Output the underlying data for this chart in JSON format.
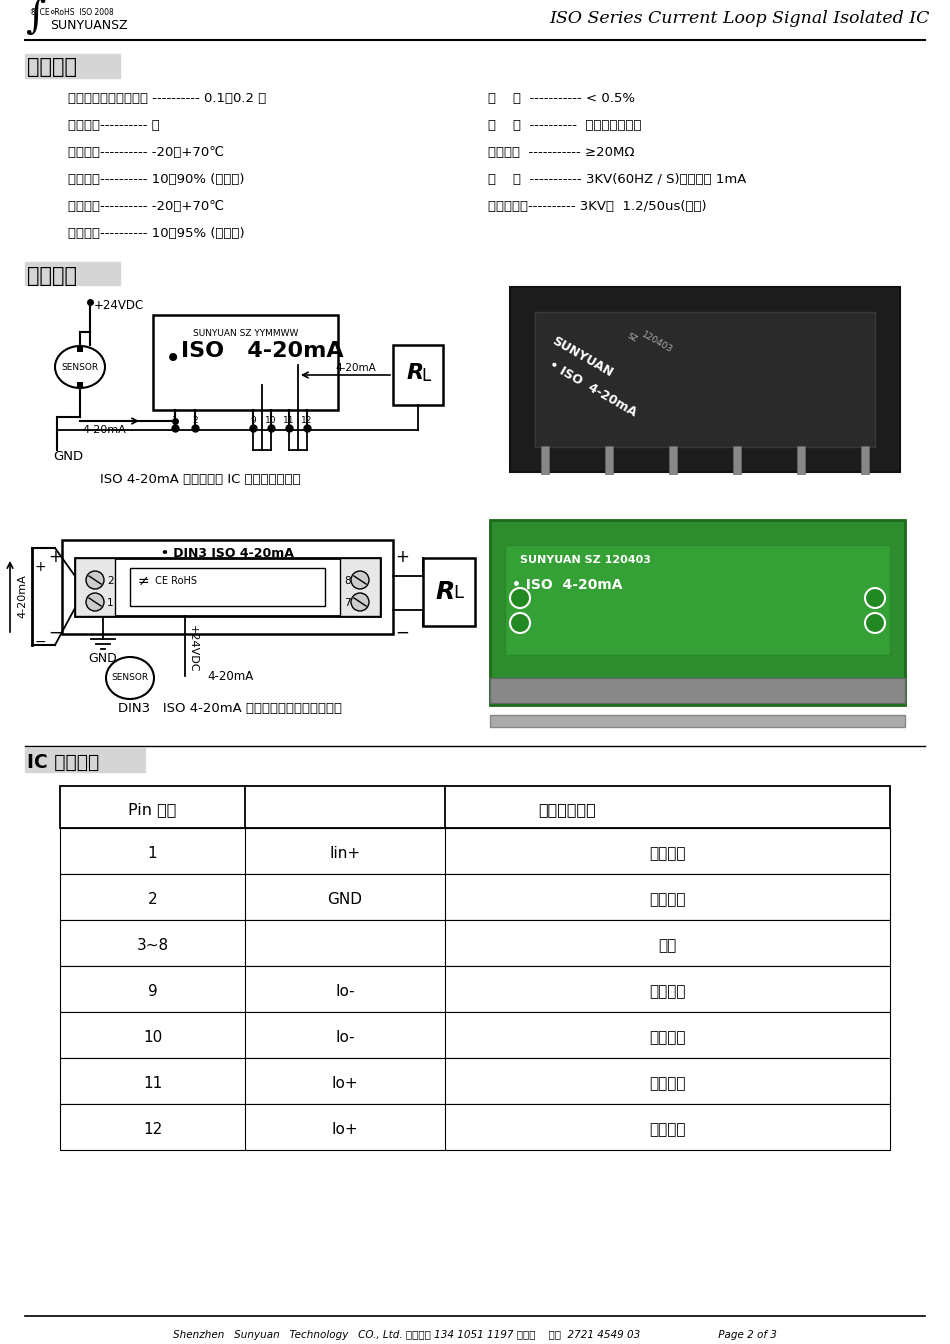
{
  "page_bg": "#ffffff",
  "header_brand": "SUNYUANSZ",
  "header_title": "ISO Series Current Loop Signal Isolated IC",
  "sec1_title": "通用参数",
  "params_left": [
    "精度、线性度误差等级 ---------- 0.1，0.2 级",
    "辅助电源---------- 无",
    "工作温度---------- -20～+70℃",
    "工作湿度---------- 10～90% (无凝露)",
    "存储温度---------- -20～+70℃",
    "存储湿度---------- 10～95% (无凝露)"
  ],
  "params_right": [
    "回    差  ----------- < 0.5%",
    "隔    离  ----------  信号输入与输出",
    "绝缘电阻  ----------- ≥20MΩ",
    "耐    压  ----------- 3KV(60HZ / S)，漏电流 1mA",
    "耐冲击电压---------- 3KV，  1.2/50us(峰值)"
  ],
  "sec2_title": "典型应用",
  "caption1": "ISO 4-20mA 信号隔离器 IC 典型应用接线图",
  "caption2": "DIN3   ISO 4-20mA 信号隔离器典型应用接线图",
  "sec3_title": "IC 引脚描述",
  "table_col1": "Pin 引脚",
  "table_col23": "引脚功能说明",
  "table_rows": [
    [
      "1",
      "Iin+",
      "信号输入"
    ],
    [
      "2",
      "GND",
      "信号输入"
    ],
    [
      "3~8",
      "",
      "空脚"
    ],
    [
      "9",
      "Io-",
      "信号输出"
    ],
    [
      "10",
      "Io-",
      "信号输出"
    ],
    [
      "11",
      "Io+",
      "信号输出"
    ],
    [
      "12",
      "Io+",
      "信号输出"
    ]
  ],
  "footer": "Shenzhen   Sunyuan   Technology   CO., Ltd. 销售电话 134 1051 1197 钟如来    扣扣  2721 4549 03                        Page 2 of 3"
}
